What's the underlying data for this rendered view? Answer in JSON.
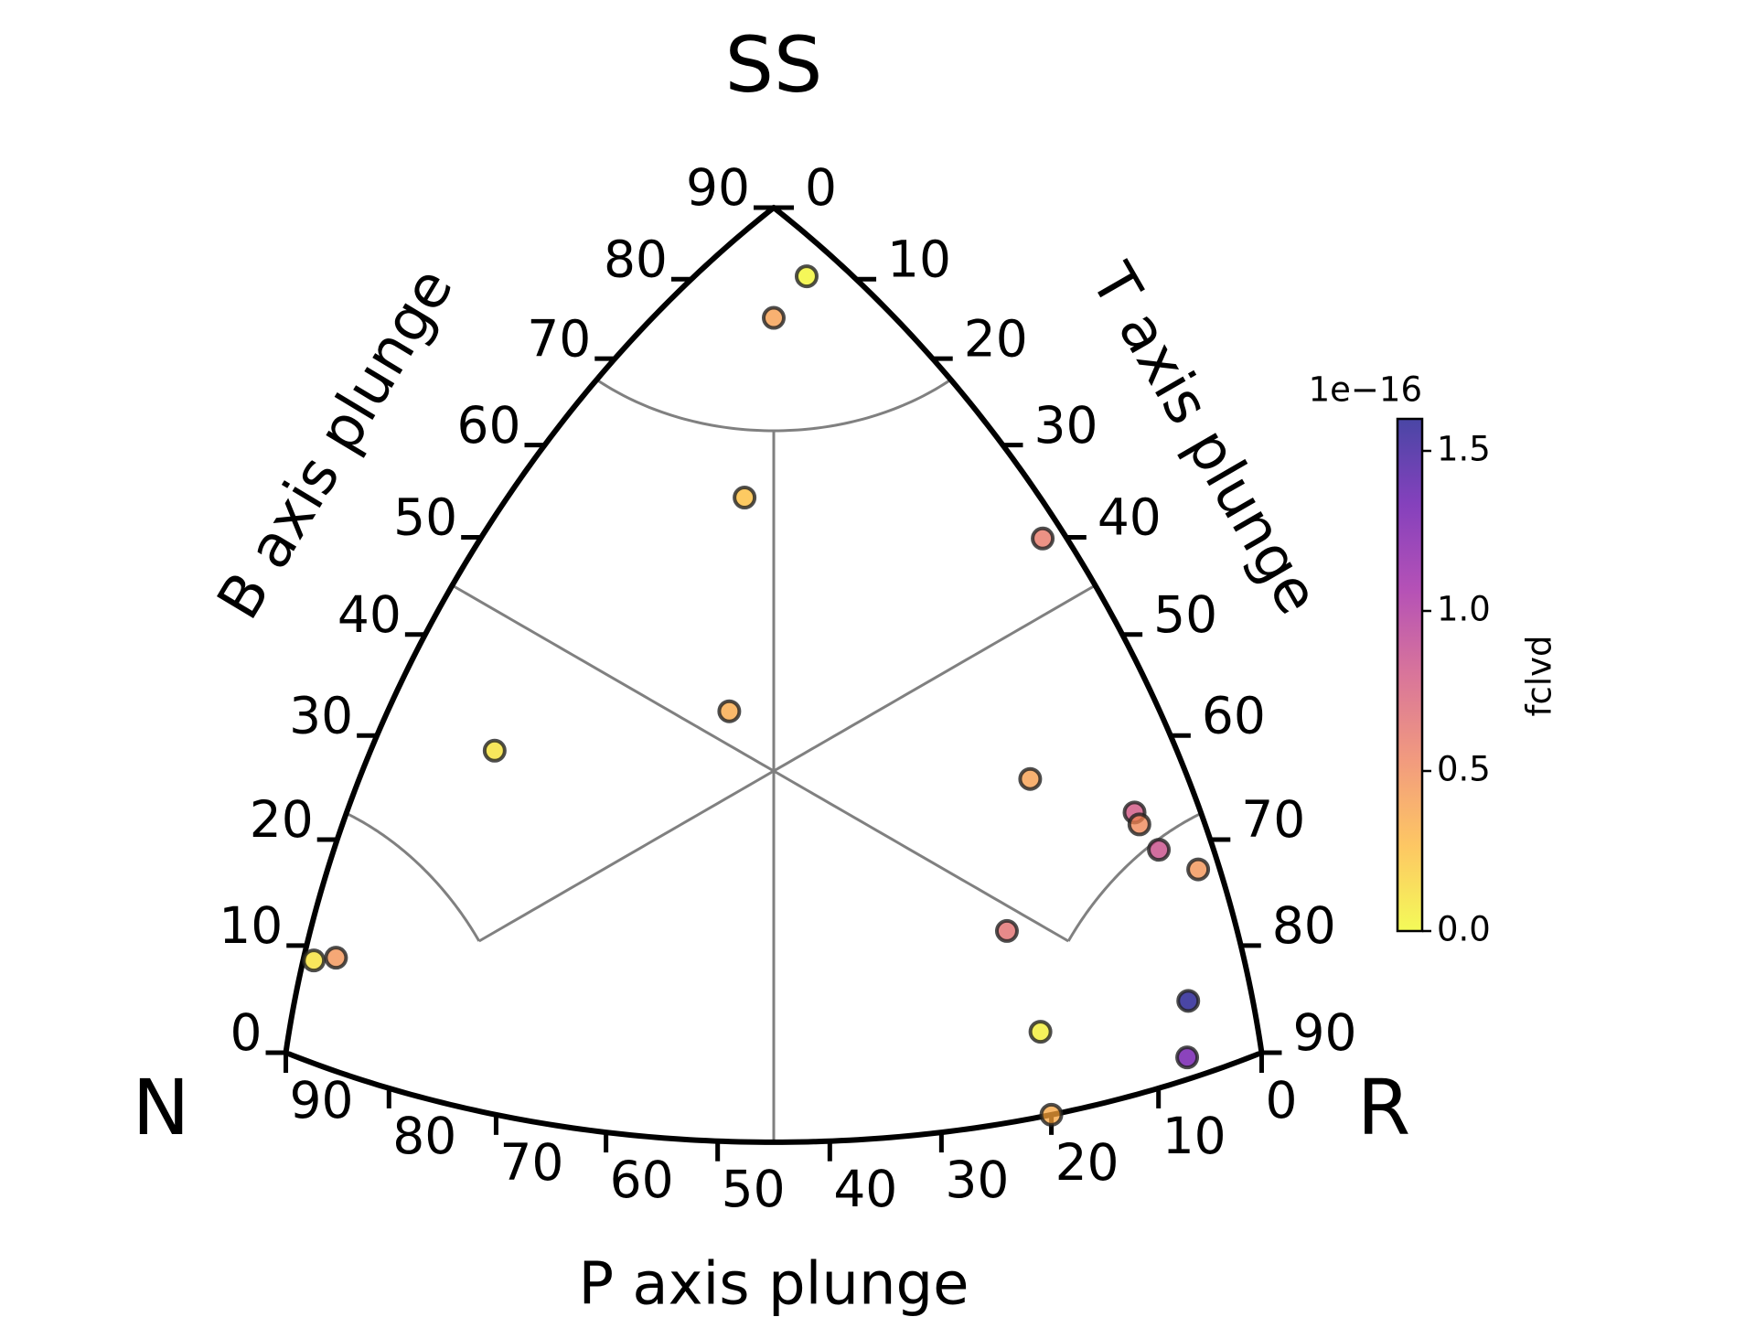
{
  "chart_data": {
    "type": "ternary",
    "top_label": "SS",
    "left_label": "N",
    "right_label": "R",
    "b_axis": {
      "label": "B axis plunge",
      "ticks": [
        0,
        10,
        20,
        30,
        40,
        50,
        60,
        70,
        80,
        90
      ]
    },
    "t_axis": {
      "label": "T axis plunge",
      "ticks": [
        0,
        10,
        20,
        30,
        40,
        50,
        60,
        70,
        80,
        90
      ]
    },
    "p_axis": {
      "label": "P axis plunge",
      "ticks": [
        0,
        10,
        20,
        30,
        40,
        50,
        60,
        70,
        80,
        90
      ]
    },
    "grid": true,
    "points": {
      "t": [
        7,
        8,
        18,
        39,
        29,
        11,
        55,
        64,
        66,
        68,
        72,
        62,
        80,
        68,
        83,
        70,
        1,
        3
      ],
      "b": [
        83,
        79,
        61,
        51,
        41,
        33,
        31,
        25,
        24,
        21,
        18,
        18,
        7,
        8,
        2,
        0,
        9,
        10
      ],
      "p": [
        3,
        8,
        22,
        2,
        36,
        55,
        14,
        6,
        6,
        5,
        2,
        21,
        6,
        20,
        7,
        20,
        81,
        79
      ],
      "fclvd": [
        2e-18,
        4e-17,
        2.5e-17,
        6e-17,
        3.5e-17,
        1e-17,
        4e-17,
        8e-17,
        5e-17,
        8.5e-17,
        4.5e-17,
        6.5e-17,
        1.6e-16,
        5e-18,
        1.3e-16,
        3.5e-17,
        1e-17,
        4.5e-17
      ]
    },
    "colorbar": {
      "label": "fclvd",
      "offset_label": "1e−16",
      "lim": [
        0,
        1.6e-16
      ],
      "ticks": [
        {
          "value": 0,
          "label": "0.0"
        },
        {
          "value": 5e-17,
          "label": "0.5"
        },
        {
          "value": 1e-16,
          "label": "1.0"
        },
        {
          "value": 1.5e-16,
          "label": "1.5"
        }
      ],
      "colormap": [
        "#f0f921",
        "#fdb42f",
        "#ed7953",
        "#cc4778",
        "#9c179e",
        "#5c01a6",
        "#0d0887"
      ]
    }
  }
}
